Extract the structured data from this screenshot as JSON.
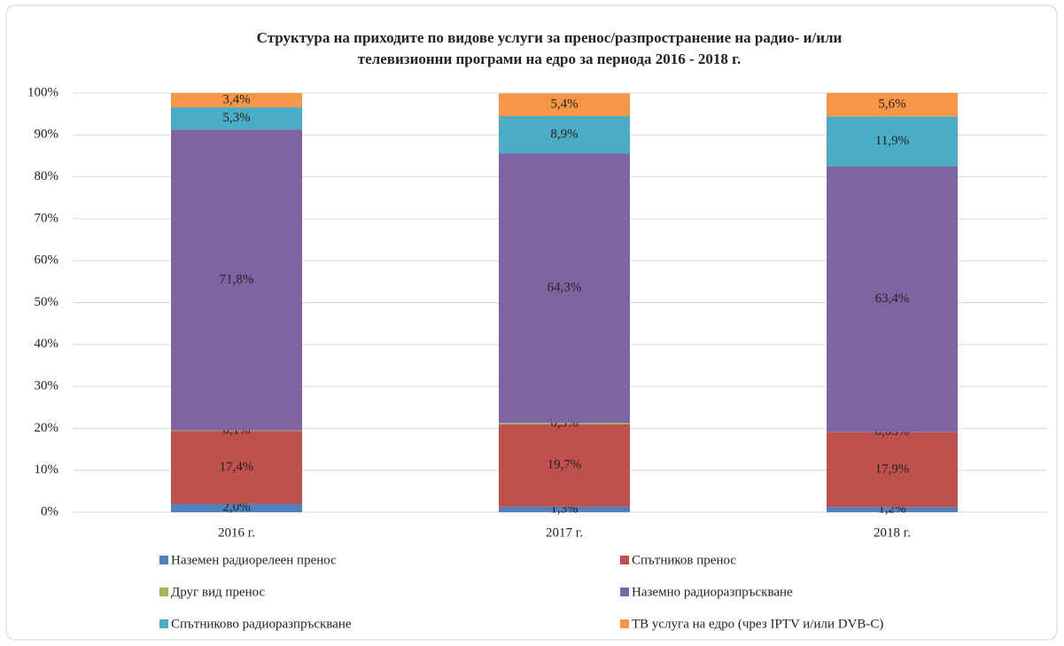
{
  "chart_data": {
    "type": "stacked_bar",
    "title": [
      "Структура на приходите по видове услуги за пренос/разпространение  на радио- и/или",
      "телевизионни програми  на едро за периода 2016 - 2018 г."
    ],
    "categories": [
      "2016 г.",
      "2017 г.",
      "2018 г."
    ],
    "ylim": [
      0,
      100
    ],
    "yticks": [
      {
        "value": 0,
        "label": "0%"
      },
      {
        "value": 10,
        "label": "10%"
      },
      {
        "value": 20,
        "label": "20%"
      },
      {
        "value": 30,
        "label": "30%"
      },
      {
        "value": 40,
        "label": "40%"
      },
      {
        "value": 50,
        "label": "50%"
      },
      {
        "value": 60,
        "label": "60%"
      },
      {
        "value": 70,
        "label": "70%"
      },
      {
        "value": 80,
        "label": "80%"
      },
      {
        "value": 90,
        "label": "90%"
      },
      {
        "value": 100,
        "label": "100%"
      }
    ],
    "grid": true,
    "legend": "bottom",
    "series": [
      {
        "name": "Наземен радиорелеен пренос",
        "color": "#4f81bd",
        "values": [
          2.0,
          1.3,
          1.2
        ],
        "value_labels": [
          "2,0%",
          "1,3%",
          "1,2%"
        ]
      },
      {
        "name": "Спътников  пренос",
        "color": "#c0504d",
        "values": [
          17.4,
          19.7,
          17.9
        ],
        "value_labels": [
          "17,4%",
          "19,7%",
          "17,9%"
        ]
      },
      {
        "name": "Друг вид пренос",
        "color": "#9bbb59",
        "values": [
          0.1,
          0.3,
          0.03
        ],
        "value_labels": [
          "0,1%",
          "0,3%",
          "0,03%"
        ]
      },
      {
        "name": "Наземно радиоразпръскване",
        "color": "#8064a2",
        "values": [
          71.8,
          64.3,
          63.4
        ],
        "value_labels": [
          "71,8%",
          "64,3%",
          "63,4%"
        ]
      },
      {
        "name": "Спътниково  радиоразпръскване",
        "color": "#4bacc6",
        "values": [
          5.3,
          8.9,
          11.9
        ],
        "value_labels": [
          "5,3%",
          "8,9%",
          "11,9%"
        ]
      },
      {
        "name": "ТВ услуга на едро (чрез IPTV  и/или DVB-C)",
        "color": "#f79646",
        "values": [
          3.4,
          5.4,
          5.6
        ],
        "value_labels": [
          "3,4%",
          "5,4%",
          "5,6%"
        ]
      }
    ]
  }
}
